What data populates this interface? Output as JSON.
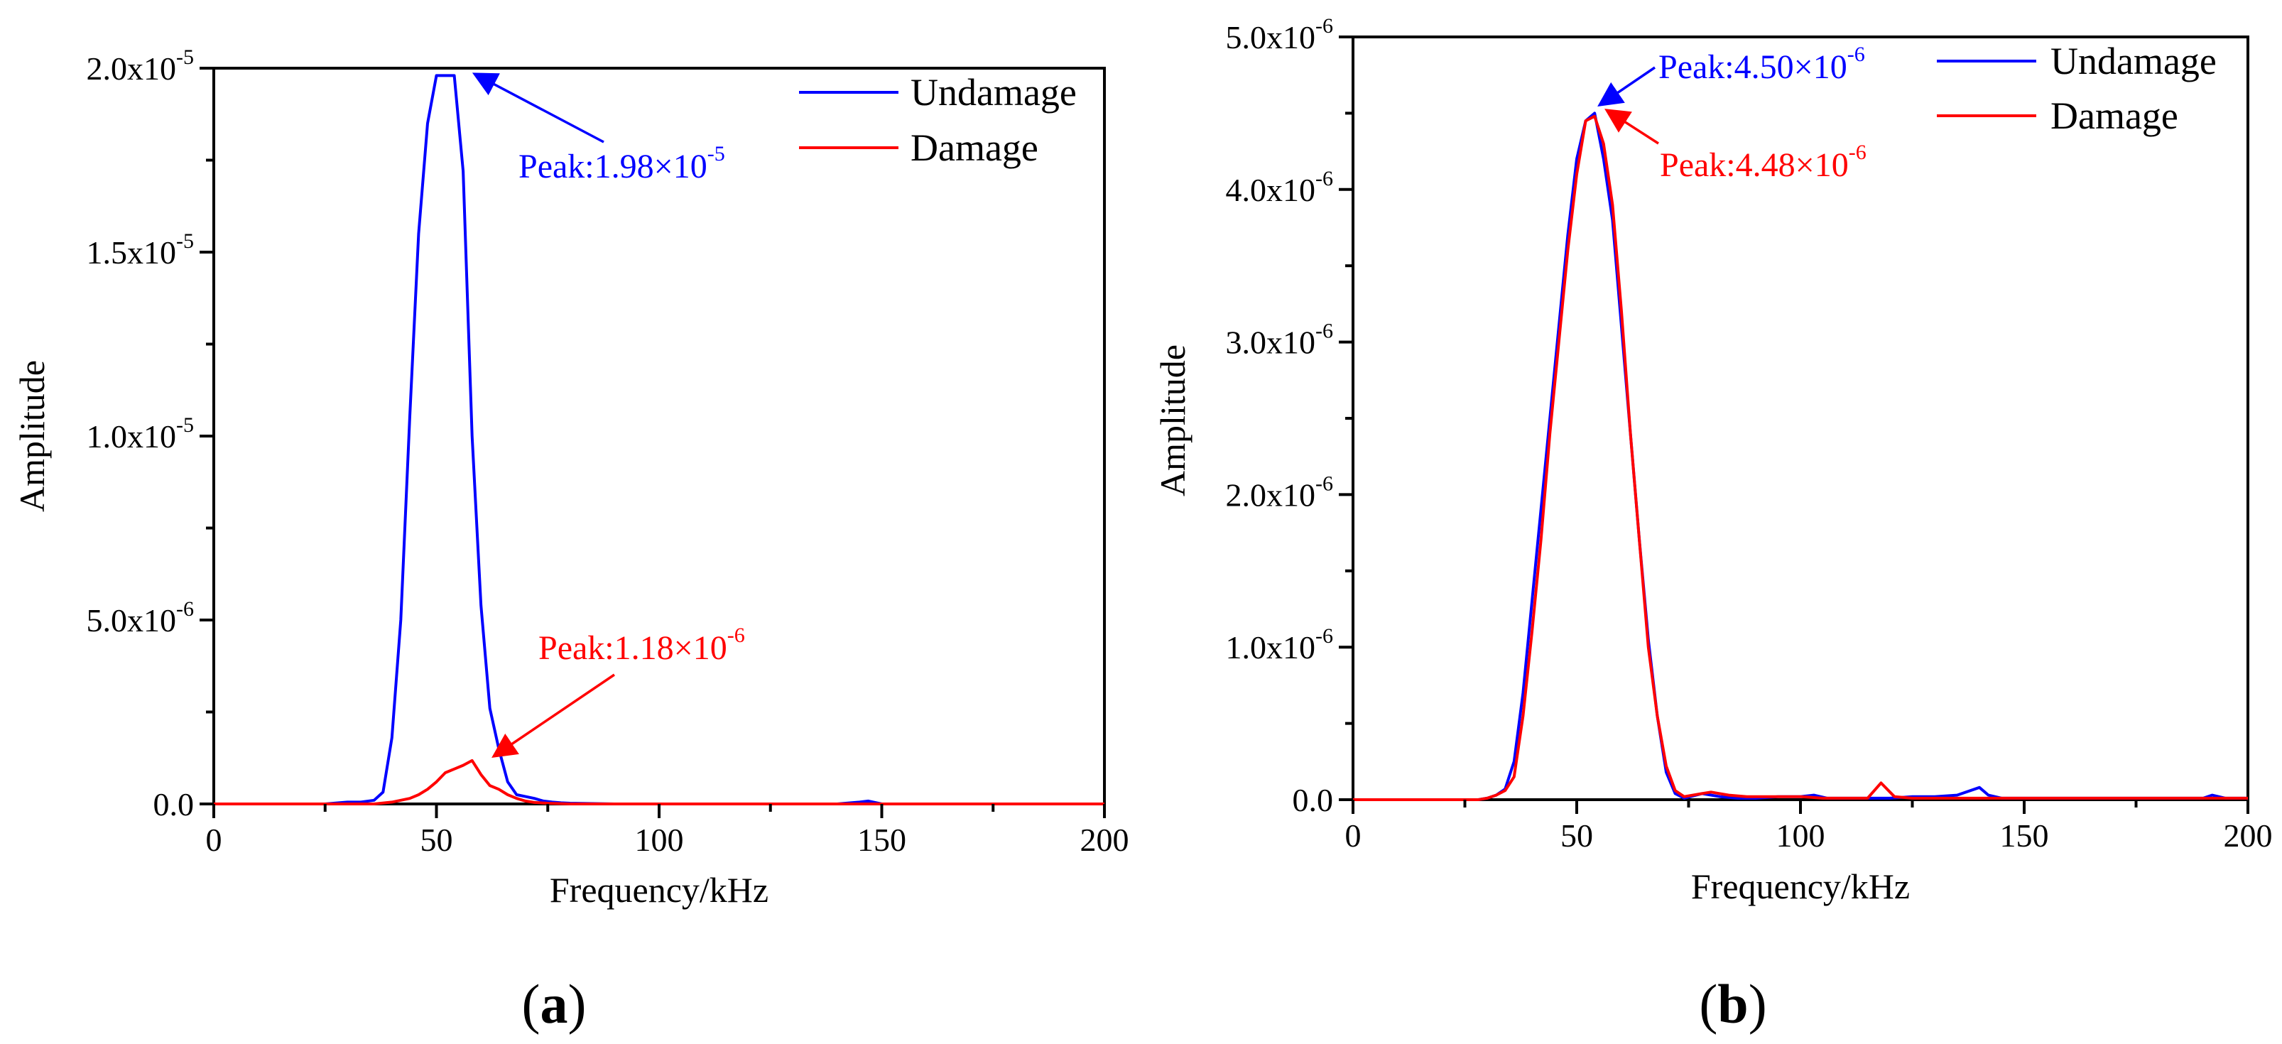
{
  "figure": {
    "panel_labels": [
      "(a)",
      "(b)"
    ]
  },
  "colors": {
    "undamage": "#0000ff",
    "damage": "#ff0000",
    "axis": "#000000"
  },
  "chart_data": [
    {
      "id": "a",
      "type": "line",
      "title": "",
      "xlabel": "Frequency/kHz",
      "ylabel": "Amplitude",
      "xlim": [
        0,
        200
      ],
      "ylim": [
        0,
        2e-05
      ],
      "xticks": [
        0,
        50,
        100,
        150,
        200
      ],
      "yticks": [
        {
          "value": 0,
          "mant": "0.0",
          "exp": ""
        },
        {
          "value": 5e-06,
          "mant": "5.0x10",
          "exp": "-6"
        },
        {
          "value": 1e-05,
          "mant": "1.0x10",
          "exp": "-5"
        },
        {
          "value": 1.5e-05,
          "mant": "1.5x10",
          "exp": "-5"
        },
        {
          "value": 2e-05,
          "mant": "2.0x10",
          "exp": "-5"
        }
      ],
      "legend": [
        "Undamage",
        "Damage"
      ],
      "legend_position": "top-right",
      "series": [
        {
          "name": "Undamage",
          "color": "#0000ff",
          "x": [
            0,
            5,
            10,
            15,
            20,
            25,
            30,
            33,
            36,
            38,
            40,
            42,
            44,
            46,
            48,
            50,
            52,
            54,
            56,
            58,
            60,
            62,
            64,
            66,
            68,
            70,
            72,
            74,
            76,
            78,
            80,
            85,
            90,
            95,
            100,
            110,
            120,
            130,
            140,
            145,
            147,
            150,
            160,
            170,
            180,
            190,
            200
          ],
          "y": [
            0,
            0,
            0,
            0,
            0,
            0,
            5e-08,
            5e-08,
            1e-07,
            3.2e-07,
            1.8e-06,
            5e-06,
            1.05e-05,
            1.55e-05,
            1.85e-05,
            1.98e-05,
            1.98e-05,
            1.98e-05,
            1.72e-05,
            1e-05,
            5.4e-06,
            2.6e-06,
            1.5e-06,
            6e-07,
            2.5e-07,
            2e-07,
            1.5e-07,
            8e-08,
            5e-08,
            3e-08,
            2e-08,
            1e-08,
            0,
            0,
            0,
            0,
            0,
            0,
            0,
            5e-08,
            8e-08,
            0,
            0,
            0,
            0,
            0,
            0
          ]
        },
        {
          "name": "Damage",
          "color": "#ff0000",
          "x": [
            0,
            10,
            20,
            30,
            36,
            40,
            44,
            46,
            48,
            50,
            52,
            54,
            56,
            58,
            60,
            62,
            64,
            66,
            68,
            70,
            72,
            75,
            80,
            90,
            100,
            150,
            200
          ],
          "y": [
            0,
            0,
            0,
            0,
            0,
            5e-08,
            1.5e-07,
            2.5e-07,
            4e-07,
            6e-07,
            8.5e-07,
            9.5e-07,
            1.05e-06,
            1.18e-06,
            8e-07,
            5e-07,
            4e-07,
            2.5e-07,
            1.5e-07,
            8e-08,
            4e-08,
            2e-08,
            0,
            0,
            0,
            0,
            0
          ]
        }
      ],
      "annotations": [
        {
          "text": "Peak:1.98×10",
          "exp": "-5",
          "color": "#0000ff",
          "x": 55,
          "y": 1.98e-05
        },
        {
          "text": "Peak:1.18×10",
          "exp": "-6",
          "color": "#ff0000",
          "x": 58,
          "y": 1.18e-06
        }
      ]
    },
    {
      "id": "b",
      "type": "line",
      "title": "",
      "xlabel": "Frequency/kHz",
      "ylabel": "Amplitude",
      "xlim": [
        0,
        200
      ],
      "ylim": [
        0,
        5e-06
      ],
      "xticks": [
        0,
        50,
        100,
        150,
        200
      ],
      "yticks": [
        {
          "value": 0,
          "mant": "0.0",
          "exp": ""
        },
        {
          "value": 1e-06,
          "mant": "1.0x10",
          "exp": "-6"
        },
        {
          "value": 2e-06,
          "mant": "2.0x10",
          "exp": "-6"
        },
        {
          "value": 3e-06,
          "mant": "3.0x10",
          "exp": "-6"
        },
        {
          "value": 4e-06,
          "mant": "4.0x10",
          "exp": "-6"
        },
        {
          "value": 5e-06,
          "mant": "5.0x10",
          "exp": "-6"
        }
      ],
      "legend": [
        "Undamage",
        "Damage"
      ],
      "legend_position": "top-right",
      "series": [
        {
          "name": "Undamage",
          "color": "#0000ff",
          "x": [
            0,
            10,
            20,
            28,
            30,
            32,
            34,
            36,
            38,
            40,
            42,
            44,
            46,
            48,
            50,
            52,
            54,
            56,
            58,
            60,
            62,
            64,
            66,
            68,
            70,
            72,
            74,
            78,
            82,
            86,
            90,
            95,
            100,
            103,
            106,
            110,
            115,
            120,
            125,
            130,
            135,
            140,
            142,
            145,
            150,
            160,
            170,
            180,
            190,
            192,
            195,
            200
          ],
          "y": [
            0,
            0,
            0,
            0,
            1e-08,
            3e-08,
            7e-08,
            2.5e-07,
            7e-07,
            1.3e-06,
            1.9e-06,
            2.5e-06,
            3.1e-06,
            3.7e-06,
            4.2e-06,
            4.45e-06,
            4.5e-06,
            4.2e-06,
            3.8e-06,
            3.1e-06,
            2.4e-06,
            1.7e-06,
            1.05e-06,
            5.5e-07,
            1.8e-07,
            4e-08,
            1e-08,
            4e-08,
            2e-08,
            1e-08,
            1e-08,
            2e-08,
            2e-08,
            3e-08,
            1e-08,
            1e-08,
            1e-08,
            1e-08,
            2e-08,
            2e-08,
            3e-08,
            8e-08,
            3e-08,
            1e-08,
            1e-08,
            1e-08,
            1e-08,
            1e-08,
            1e-08,
            3e-08,
            1e-08,
            1e-08
          ]
        },
        {
          "name": "Damage",
          "color": "#ff0000",
          "x": [
            0,
            10,
            20,
            28,
            30,
            32,
            34,
            36,
            38,
            40,
            42,
            44,
            46,
            48,
            50,
            52,
            54,
            56,
            58,
            60,
            62,
            64,
            66,
            68,
            70,
            72,
            74,
            78,
            80,
            84,
            88,
            92,
            96,
            100,
            105,
            110,
            115,
            118,
            121,
            125,
            130,
            140,
            150,
            160,
            170,
            180,
            190,
            200
          ],
          "y": [
            0,
            0,
            0,
            0,
            1e-08,
            3e-08,
            6e-08,
            1.5e-07,
            5.5e-07,
            1.1e-06,
            1.7e-06,
            2.4e-06,
            3e-06,
            3.6e-06,
            4.1e-06,
            4.45e-06,
            4.48e-06,
            4.3e-06,
            3.9e-06,
            3.2e-06,
            2.4e-06,
            1.7e-06,
            1e-06,
            5.5e-07,
            2.2e-07,
            6e-08,
            2e-08,
            4e-08,
            5e-08,
            3e-08,
            2e-08,
            2e-08,
            2e-08,
            2e-08,
            1e-08,
            1e-08,
            1e-08,
            1.1e-07,
            2e-08,
            1e-08,
            1e-08,
            1e-08,
            1e-08,
            1e-08,
            1e-08,
            1e-08,
            1e-08,
            1e-08
          ]
        }
      ],
      "annotations": [
        {
          "text": "Peak:4.50×10",
          "exp": "-6",
          "color": "#0000ff",
          "x": 55,
          "y": 4.5e-06
        },
        {
          "text": "Peak:4.48×10",
          "exp": "-6",
          "color": "#ff0000",
          "x": 55,
          "y": 4.48e-06
        }
      ]
    }
  ]
}
